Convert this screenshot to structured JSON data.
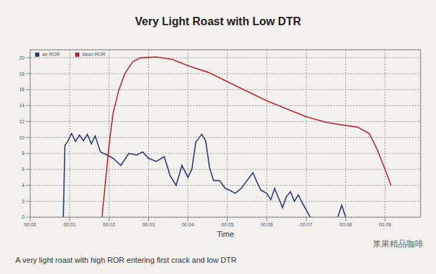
{
  "chart_data": {
    "type": "line",
    "title": "Very Light Roast with Low DTR",
    "x_label": "Time",
    "annotations": [
      "A very light roast with high ROR entering first crack and low DTR",
      "浆果精品咖啡"
    ],
    "legend": "upper left",
    "grid": true,
    "xlim": [
      0,
      9.9
    ],
    "xticks": [
      {
        "value": 0,
        "label": "00:00"
      },
      {
        "value": 1,
        "label": "00:01"
      },
      {
        "value": 2,
        "label": "00:02"
      },
      {
        "value": 3,
        "label": "00:03"
      },
      {
        "value": 4,
        "label": "00:04"
      },
      {
        "value": 5,
        "label": "00:05"
      },
      {
        "value": 6,
        "label": "00:06"
      },
      {
        "value": 7,
        "label": "00:07"
      },
      {
        "value": 8,
        "label": "00:08"
      },
      {
        "value": 9,
        "label": "00:09"
      }
    ],
    "ylim": [
      0,
      21
    ],
    "yticks": [
      0,
      2,
      4,
      6,
      8,
      10,
      12,
      14,
      16,
      18,
      20
    ],
    "series": [
      {
        "name": "air ROR",
        "color": "#2b3a7a",
        "x": [
          0.84,
          0.88,
          0.95,
          1.05,
          1.15,
          1.25,
          1.35,
          1.45,
          1.55,
          1.65,
          1.78,
          1.95,
          2.1,
          2.3,
          2.5,
          2.7,
          2.85,
          3.0,
          3.2,
          3.4,
          3.55,
          3.7,
          3.85,
          4.0,
          4.1,
          4.2,
          4.35,
          4.45,
          4.55,
          4.65,
          4.8,
          4.95,
          5.05,
          5.2,
          5.35,
          5.5,
          5.65,
          5.75,
          5.85,
          6.0,
          6.1,
          6.2,
          6.3,
          6.4,
          6.5,
          6.6,
          6.7,
          6.8,
          6.9,
          7.05,
          7.1,
          7.5,
          7.8,
          7.9,
          8.0
        ],
        "values": [
          0,
          9,
          9.5,
          10.5,
          9.5,
          10.3,
          9.6,
          10.4,
          9.2,
          10.2,
          8.2,
          7.8,
          7.4,
          6.5,
          8.0,
          7.8,
          8.2,
          7.4,
          7.0,
          7.6,
          5.2,
          4.0,
          6.5,
          5.0,
          6.0,
          9.4,
          10.4,
          9.6,
          6.2,
          4.6,
          4.6,
          3.6,
          3.4,
          3.0,
          3.6,
          4.6,
          5.6,
          4.4,
          3.4,
          3.0,
          2.2,
          3.6,
          2.4,
          1.2,
          2.6,
          3.2,
          2.0,
          2.8,
          1.8,
          0.5,
          0,
          null,
          0,
          1.5,
          0
        ]
      },
      {
        "name": "bean ROR",
        "color": "#c0282d",
        "x": [
          1.82,
          1.9,
          2.0,
          2.1,
          2.25,
          2.4,
          2.6,
          2.8,
          3.2,
          3.6,
          4.0,
          4.5,
          5.0,
          5.5,
          6.0,
          6.5,
          7.0,
          7.5,
          8.0,
          8.3,
          8.6,
          8.8,
          9.0,
          9.15
        ],
        "values": [
          0,
          4,
          9,
          13,
          16,
          18,
          19.5,
          20,
          20.1,
          19.8,
          19,
          18.2,
          17,
          15.8,
          14.6,
          13.6,
          12.6,
          11.9,
          11.5,
          11.3,
          10.5,
          8.5,
          6,
          4
        ]
      }
    ]
  }
}
